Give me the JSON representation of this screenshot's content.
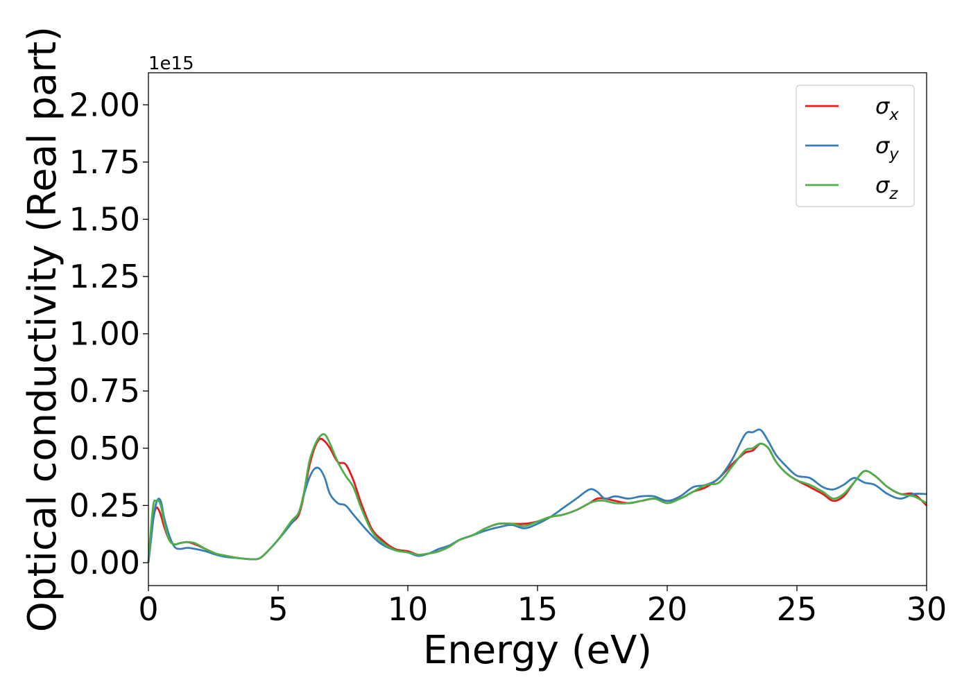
{
  "chart_data": {
    "type": "line",
    "title": "",
    "xlabel": "Energy (eV)",
    "ylabel": "Optical conductivity (Real part)",
    "y_offset_label": "1e15",
    "xlim": [
      0,
      30
    ],
    "ylim": [
      -0.1,
      2.14
    ],
    "x_ticks": [
      0,
      5,
      10,
      15,
      20,
      25,
      30
    ],
    "x_tick_labels": [
      "0",
      "5",
      "10",
      "15",
      "20",
      "25",
      "30"
    ],
    "y_ticks": [
      0.0,
      0.25,
      0.5,
      0.75,
      1.0,
      1.25,
      1.5,
      1.75,
      2.0
    ],
    "y_tick_labels": [
      "0.00",
      "0.25",
      "0.50",
      "0.75",
      "1.00",
      "1.25",
      "1.50",
      "1.75",
      "2.00"
    ],
    "grid": false,
    "legend_position": "top-right",
    "series": [
      {
        "name": "σ_x",
        "legend_symbol": "σ",
        "legend_sub": "x",
        "color": "#e41a1c",
        "x": [
          0,
          0.1,
          0.2,
          0.3,
          0.4,
          0.5,
          0.6,
          0.8,
          1.0,
          1.2,
          1.5,
          1.8,
          2.2,
          2.6,
          3.0,
          3.5,
          4.0,
          4.3,
          4.6,
          5.0,
          5.5,
          5.8,
          6.0,
          6.2,
          6.4,
          6.6,
          6.8,
          7.0,
          7.3,
          7.6,
          7.9,
          8.2,
          8.6,
          9.0,
          9.5,
          10.0,
          10.4,
          10.8,
          11.2,
          11.6,
          12.0,
          12.5,
          13.0,
          13.5,
          14.0,
          14.5,
          15.0,
          15.5,
          16.0,
          16.5,
          17.0,
          17.3,
          17.6,
          18.0,
          18.5,
          19.0,
          19.5,
          20.0,
          20.5,
          21.0,
          21.5,
          22.0,
          22.5,
          23.0,
          23.3,
          23.6,
          23.9,
          24.2,
          24.6,
          25.0,
          25.5,
          26.0,
          26.4,
          26.8,
          27.2,
          27.6,
          28.0,
          28.5,
          29.0,
          29.5,
          30.0
        ],
        "y": [
          0.0,
          0.12,
          0.2,
          0.24,
          0.23,
          0.2,
          0.16,
          0.1,
          0.08,
          0.085,
          0.09,
          0.08,
          0.06,
          0.04,
          0.03,
          0.02,
          0.015,
          0.02,
          0.05,
          0.1,
          0.17,
          0.21,
          0.3,
          0.42,
          0.5,
          0.54,
          0.53,
          0.5,
          0.44,
          0.43,
          0.36,
          0.26,
          0.15,
          0.1,
          0.06,
          0.05,
          0.035,
          0.04,
          0.05,
          0.07,
          0.1,
          0.12,
          0.15,
          0.17,
          0.17,
          0.17,
          0.18,
          0.2,
          0.21,
          0.23,
          0.26,
          0.28,
          0.28,
          0.27,
          0.26,
          0.27,
          0.28,
          0.27,
          0.28,
          0.31,
          0.33,
          0.37,
          0.43,
          0.48,
          0.49,
          0.52,
          0.5,
          0.44,
          0.39,
          0.36,
          0.33,
          0.3,
          0.27,
          0.29,
          0.35,
          0.4,
          0.38,
          0.33,
          0.3,
          0.3,
          0.25
        ]
      },
      {
        "name": "σ_y",
        "legend_symbol": "σ",
        "legend_sub": "y",
        "color": "#377eb8",
        "x": [
          0,
          0.1,
          0.2,
          0.3,
          0.4,
          0.5,
          0.6,
          0.8,
          1.0,
          1.2,
          1.5,
          1.8,
          2.2,
          2.6,
          3.0,
          3.5,
          4.0,
          4.3,
          4.6,
          5.0,
          5.5,
          5.8,
          6.0,
          6.2,
          6.4,
          6.6,
          6.8,
          7.0,
          7.3,
          7.6,
          7.9,
          8.2,
          8.6,
          9.0,
          9.5,
          10.0,
          10.4,
          10.8,
          11.2,
          11.6,
          12.0,
          12.5,
          13.0,
          13.5,
          14.0,
          14.5,
          15.0,
          15.5,
          16.0,
          16.5,
          17.0,
          17.3,
          17.6,
          18.0,
          18.5,
          19.0,
          19.5,
          20.0,
          20.5,
          21.0,
          21.5,
          22.0,
          22.5,
          23.0,
          23.3,
          23.6,
          23.9,
          24.2,
          24.6,
          25.0,
          25.5,
          26.0,
          26.4,
          26.8,
          27.2,
          27.6,
          28.0,
          28.5,
          29.0,
          29.5,
          30.0
        ],
        "y": [
          0.0,
          0.1,
          0.2,
          0.26,
          0.28,
          0.26,
          0.2,
          0.12,
          0.07,
          0.06,
          0.065,
          0.06,
          0.05,
          0.035,
          0.025,
          0.02,
          0.015,
          0.02,
          0.05,
          0.1,
          0.17,
          0.22,
          0.3,
          0.37,
          0.41,
          0.41,
          0.37,
          0.3,
          0.26,
          0.25,
          0.21,
          0.17,
          0.12,
          0.08,
          0.055,
          0.045,
          0.03,
          0.04,
          0.06,
          0.075,
          0.1,
          0.12,
          0.14,
          0.155,
          0.165,
          0.15,
          0.17,
          0.2,
          0.24,
          0.28,
          0.32,
          0.31,
          0.28,
          0.29,
          0.28,
          0.29,
          0.29,
          0.27,
          0.29,
          0.33,
          0.34,
          0.37,
          0.45,
          0.56,
          0.57,
          0.58,
          0.53,
          0.47,
          0.42,
          0.38,
          0.37,
          0.33,
          0.32,
          0.34,
          0.37,
          0.35,
          0.34,
          0.3,
          0.28,
          0.3,
          0.3
        ]
      },
      {
        "name": "σ_z",
        "legend_symbol": "σ",
        "legend_sub": "z",
        "color": "#4daf4a",
        "x": [
          0,
          0.1,
          0.2,
          0.3,
          0.4,
          0.5,
          0.6,
          0.8,
          1.0,
          1.2,
          1.5,
          1.8,
          2.2,
          2.6,
          3.0,
          3.5,
          4.0,
          4.3,
          4.6,
          5.0,
          5.5,
          5.8,
          6.0,
          6.2,
          6.4,
          6.6,
          6.8,
          7.0,
          7.3,
          7.6,
          7.9,
          8.2,
          8.6,
          9.0,
          9.5,
          10.0,
          10.4,
          10.8,
          11.2,
          11.6,
          12.0,
          12.5,
          13.0,
          13.5,
          14.0,
          14.5,
          15.0,
          15.5,
          16.0,
          16.5,
          17.0,
          17.3,
          17.6,
          18.0,
          18.5,
          19.0,
          19.5,
          20.0,
          20.5,
          21.0,
          21.5,
          22.0,
          22.5,
          23.0,
          23.3,
          23.6,
          23.9,
          24.2,
          24.6,
          25.0,
          25.5,
          26.0,
          26.4,
          26.8,
          27.2,
          27.6,
          28.0,
          28.5,
          29.0,
          29.5,
          30.0
        ],
        "y": [
          0.0,
          0.15,
          0.26,
          0.27,
          0.27,
          0.24,
          0.18,
          0.1,
          0.08,
          0.085,
          0.09,
          0.085,
          0.06,
          0.04,
          0.03,
          0.02,
          0.015,
          0.02,
          0.05,
          0.1,
          0.18,
          0.22,
          0.31,
          0.44,
          0.51,
          0.55,
          0.56,
          0.52,
          0.44,
          0.38,
          0.33,
          0.24,
          0.14,
          0.09,
          0.055,
          0.045,
          0.035,
          0.04,
          0.05,
          0.07,
          0.1,
          0.12,
          0.15,
          0.17,
          0.17,
          0.16,
          0.18,
          0.2,
          0.21,
          0.23,
          0.26,
          0.27,
          0.27,
          0.26,
          0.26,
          0.27,
          0.28,
          0.26,
          0.28,
          0.31,
          0.34,
          0.35,
          0.42,
          0.49,
          0.5,
          0.52,
          0.5,
          0.44,
          0.39,
          0.36,
          0.34,
          0.31,
          0.28,
          0.3,
          0.35,
          0.4,
          0.38,
          0.33,
          0.3,
          0.29,
          0.26
        ]
      }
    ]
  }
}
